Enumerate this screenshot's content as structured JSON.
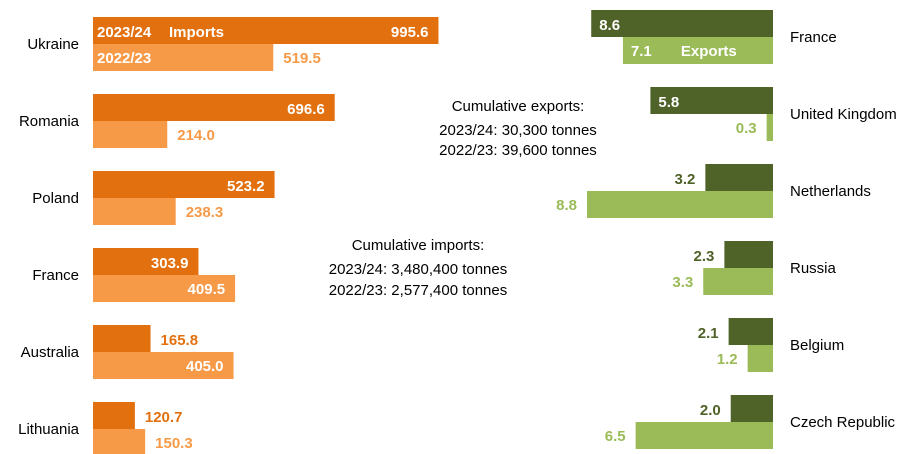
{
  "colors": {
    "imports_current": "#E3700E",
    "imports_previous": "#F79A48",
    "exports_current": "#4F6228",
    "exports_previous": "#9BBB59",
    "label_on_bar": "#ffffff"
  },
  "notes": {
    "exports": {
      "line1": "Cumulative exports:",
      "line2": "2023/24: 30,300 tonnes",
      "line3": "2022/23: 39,600 tonnes"
    },
    "imports": {
      "line1": "Cumulative imports:",
      "line2": "2023/24: 3,480,400 tonnes",
      "line3": "2022/23: 2,577,400 tonnes"
    }
  },
  "chart_data": [
    {
      "type": "bar",
      "orientation": "horizontal",
      "title": "Imports",
      "categories": [
        "Ukraine",
        "Romania",
        "Poland",
        "France",
        "Australia",
        "Lithuania"
      ],
      "series": [
        {
          "name": "2023/24",
          "values": [
            995.6,
            696.6,
            523.2,
            303.9,
            165.8,
            120.7
          ]
        },
        {
          "name": "2022/23",
          "values": [
            519.5,
            214.0,
            238.3,
            409.5,
            405.0,
            150.3
          ]
        }
      ],
      "value_labels_current": [
        "995.6",
        "696.6",
        "523.2",
        "303.9",
        "165.8",
        "120.7"
      ],
      "value_labels_previous": [
        "519.5",
        "214.0",
        "238.3",
        "409.5",
        "405.0",
        "150.3"
      ],
      "xlim": [
        0,
        1000
      ],
      "grid": false
    },
    {
      "type": "bar",
      "orientation": "horizontal",
      "direction": "right-to-left",
      "title": "Exports",
      "categories": [
        "France",
        "United Kingdom",
        "Netherlands",
        "Russia",
        "Belgium",
        "Czech Republic"
      ],
      "series": [
        {
          "name": "2023/24",
          "values": [
            8.6,
            5.8,
            3.2,
            2.3,
            2.1,
            2.0
          ]
        },
        {
          "name": "2022/23",
          "values": [
            7.1,
            0.3,
            8.8,
            3.3,
            1.2,
            6.5
          ]
        }
      ],
      "value_labels_current": [
        "8.6",
        "5.8",
        "3.2",
        "2.3",
        "2.1",
        "2.0"
      ],
      "value_labels_previous": [
        "7.1",
        "0.3",
        "8.8",
        "3.3",
        "1.2",
        "6.5"
      ],
      "xlim": [
        0,
        10
      ],
      "grid": false
    }
  ]
}
